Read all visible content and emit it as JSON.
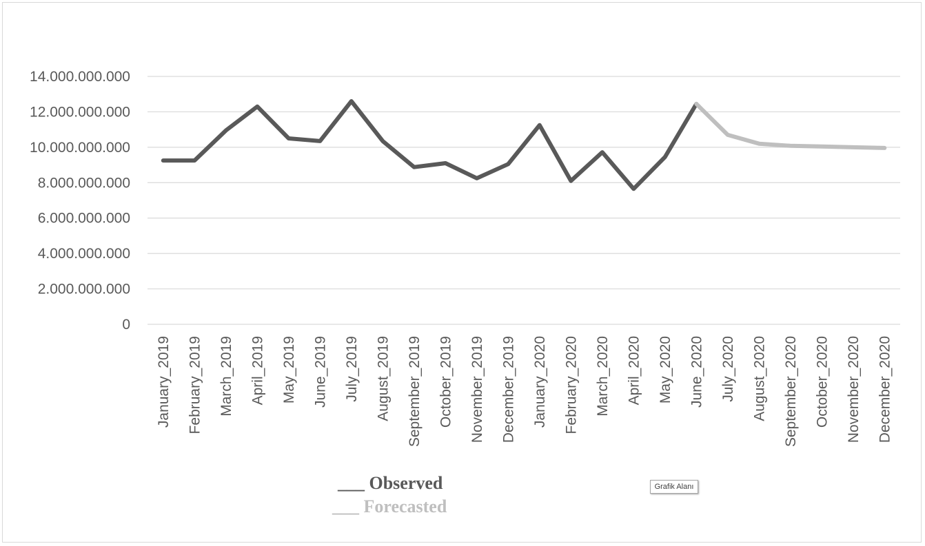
{
  "chart_data": {
    "type": "line",
    "categories": [
      "January_2019",
      "February_2019",
      "March_2019",
      "April_2019",
      "May_2019",
      "June_2019",
      "July_2019",
      "August_2019",
      "September_2019",
      "October_2019",
      "November_2019",
      "December_2019",
      "January_2020",
      "February_2020",
      "March_2020",
      "April_2020",
      "May_2020",
      "June_2020",
      "July_2020",
      "August_2020",
      "September_2020",
      "October_2020",
      "November_2020",
      "December_2020"
    ],
    "series": [
      {
        "name": "Observed",
        "color": "#595959",
        "values": [
          9250000000,
          9250000000,
          10950000000,
          12300000000,
          10500000000,
          10350000000,
          12600000000,
          10350000000,
          8880000000,
          9100000000,
          8250000000,
          9050000000,
          11250000000,
          8100000000,
          9720000000,
          7650000000,
          9450000000,
          12450000000,
          null,
          null,
          null,
          null,
          null,
          null
        ]
      },
      {
        "name": "Forecasted",
        "color": "#bfbfbf",
        "values": [
          null,
          null,
          null,
          null,
          null,
          null,
          null,
          null,
          null,
          null,
          null,
          null,
          null,
          null,
          null,
          null,
          null,
          12450000000,
          10700000000,
          10200000000,
          10080000000,
          10040000000,
          10000000000,
          9960000000
        ]
      }
    ],
    "ylim": [
      0,
      14000000000
    ],
    "yticks": [
      0,
      2000000000,
      4000000000,
      6000000000,
      8000000000,
      10000000000,
      12000000000,
      14000000000
    ],
    "ytick_labels": [
      "0",
      "2.000.000.000",
      "4.000.000.000",
      "6.000.000.000",
      "8.000.000.000",
      "10.000.000.000",
      "12.000.000.000",
      "14.000.000.000"
    ],
    "grid": true,
    "legend_placement": "bottom-left"
  },
  "legend": {
    "observed": "___ Observed",
    "forecasted": "___ Forecasted"
  },
  "tooltip": "Grafik Alanı"
}
